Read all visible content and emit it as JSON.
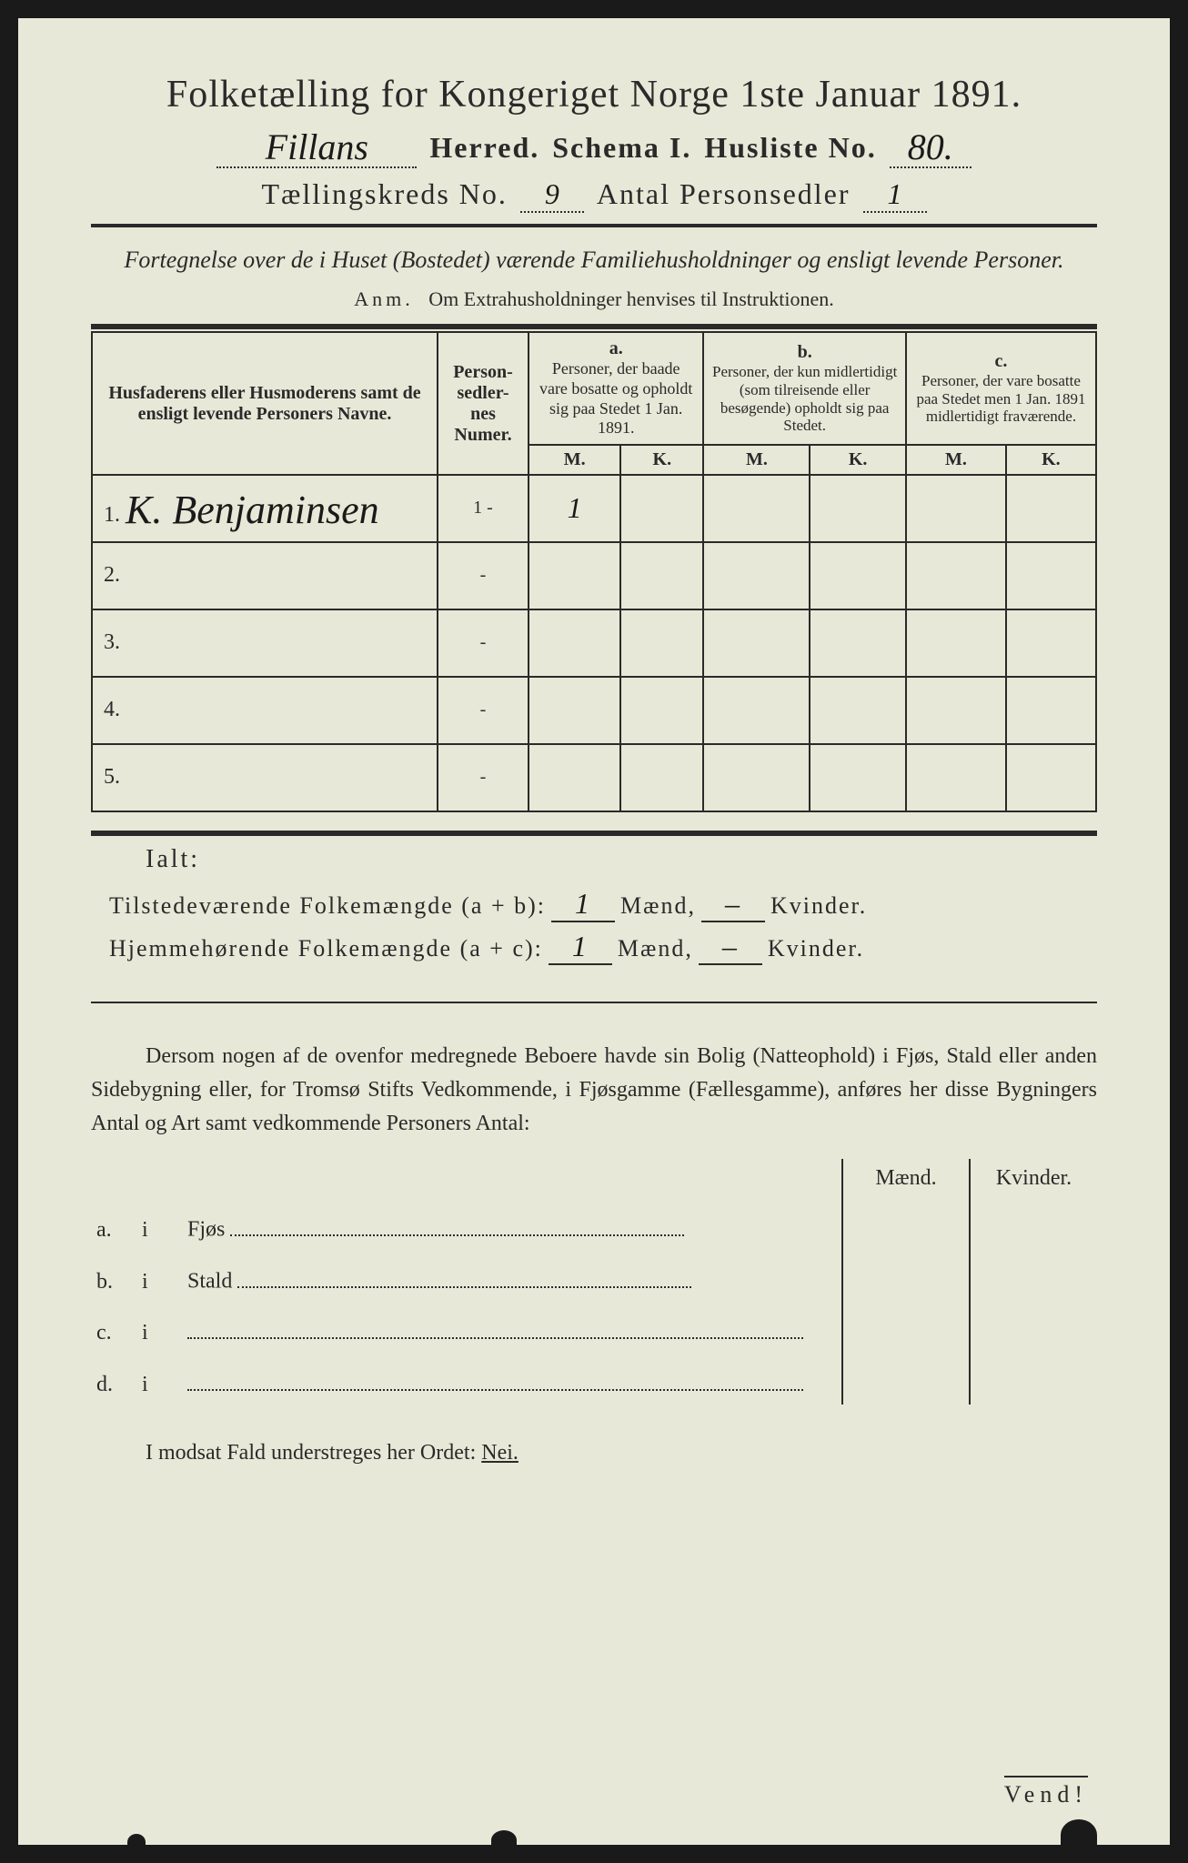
{
  "colors": {
    "paper": "#e8e8d8",
    "ink": "#2a2a2a",
    "background": "#1a1a1a",
    "handwriting": "#1a1a1a"
  },
  "title": "Folketælling for Kongeriget Norge 1ste Januar 1891.",
  "line2": {
    "herred_value": "Fillans",
    "herred_label": "Herred.",
    "schema_label": "Schema I.",
    "husliste_label": "Husliste No.",
    "husliste_value": "80."
  },
  "line3": {
    "kreds_label": "Tællingskreds No.",
    "kreds_value": "9",
    "antal_label": "Antal Personsedler",
    "antal_value": "1"
  },
  "subtitle": "Fortegnelse over de i Huset (Bostedet) værende Familiehusholdninger og ensligt levende Personer.",
  "anm_label": "Anm.",
  "anm_text": "Om Extrahusholdninger henvises til Instruktionen.",
  "table": {
    "col_names": "Husfaderens eller Husmoderens samt de ensligt levende Personers Navne.",
    "col_numer": "Person-sedler-nes Numer.",
    "col_a_label": "a.",
    "col_a_text": "Personer, der baade vare bosatte og opholdt sig paa Stedet 1 Jan. 1891.",
    "col_b_label": "b.",
    "col_b_text": "Personer, der kun midlertidigt (som tilreisende eller besøgende) opholdt sig paa Stedet.",
    "col_c_label": "c.",
    "col_c_text": "Personer, der vare bosatte paa Stedet men 1 Jan. 1891 midlertidigt fraværende.",
    "m": "M.",
    "k": "K.",
    "rows": [
      {
        "num": "1.",
        "name": "K. Benjaminsen",
        "sed": "1 -",
        "aM": "1",
        "aK": "",
        "bM": "",
        "bK": "",
        "cM": "",
        "cK": ""
      },
      {
        "num": "2.",
        "name": "",
        "sed": "-",
        "aM": "",
        "aK": "",
        "bM": "",
        "bK": "",
        "cM": "",
        "cK": ""
      },
      {
        "num": "3.",
        "name": "",
        "sed": "-",
        "aM": "",
        "aK": "",
        "bM": "",
        "bK": "",
        "cM": "",
        "cK": ""
      },
      {
        "num": "4.",
        "name": "",
        "sed": "-",
        "aM": "",
        "aK": "",
        "bM": "",
        "bK": "",
        "cM": "",
        "cK": ""
      },
      {
        "num": "5.",
        "name": "",
        "sed": "-",
        "aM": "",
        "aK": "",
        "bM": "",
        "bK": "",
        "cM": "",
        "cK": ""
      }
    ]
  },
  "ialt": "Ialt:",
  "totals": {
    "line1_label": "Tilstedeværende Folkemængde (a + b):",
    "line1_m": "1",
    "line1_k": "–",
    "line2_label": "Hjemmehørende Folkemængde (a + c):",
    "line2_m": "1",
    "line2_k": "–",
    "maend": "Mænd,",
    "kvinder": "Kvinder."
  },
  "para_text": "Dersom nogen af de ovenfor medregnede Beboere havde sin Bolig (Natteophold) i Fjøs, Stald eller anden Sidebygning eller, for Tromsø Stifts Vedkommende, i Fjøsgamme (Fællesgamme), anføres her disse Bygningers Antal og Art samt vedkommende Personers Antal:",
  "sidebuild": {
    "maend": "Mænd.",
    "kvinder": "Kvinder.",
    "rows": [
      {
        "l": "a.",
        "i": "i",
        "t": "Fjøs"
      },
      {
        "l": "b.",
        "i": "i",
        "t": "Stald"
      },
      {
        "l": "c.",
        "i": "i",
        "t": ""
      },
      {
        "l": "d.",
        "i": "i",
        "t": ""
      }
    ]
  },
  "nei_line_pre": "I modsat Fald understreges her Ordet:",
  "nei": "Nei.",
  "vend": "Vend!"
}
